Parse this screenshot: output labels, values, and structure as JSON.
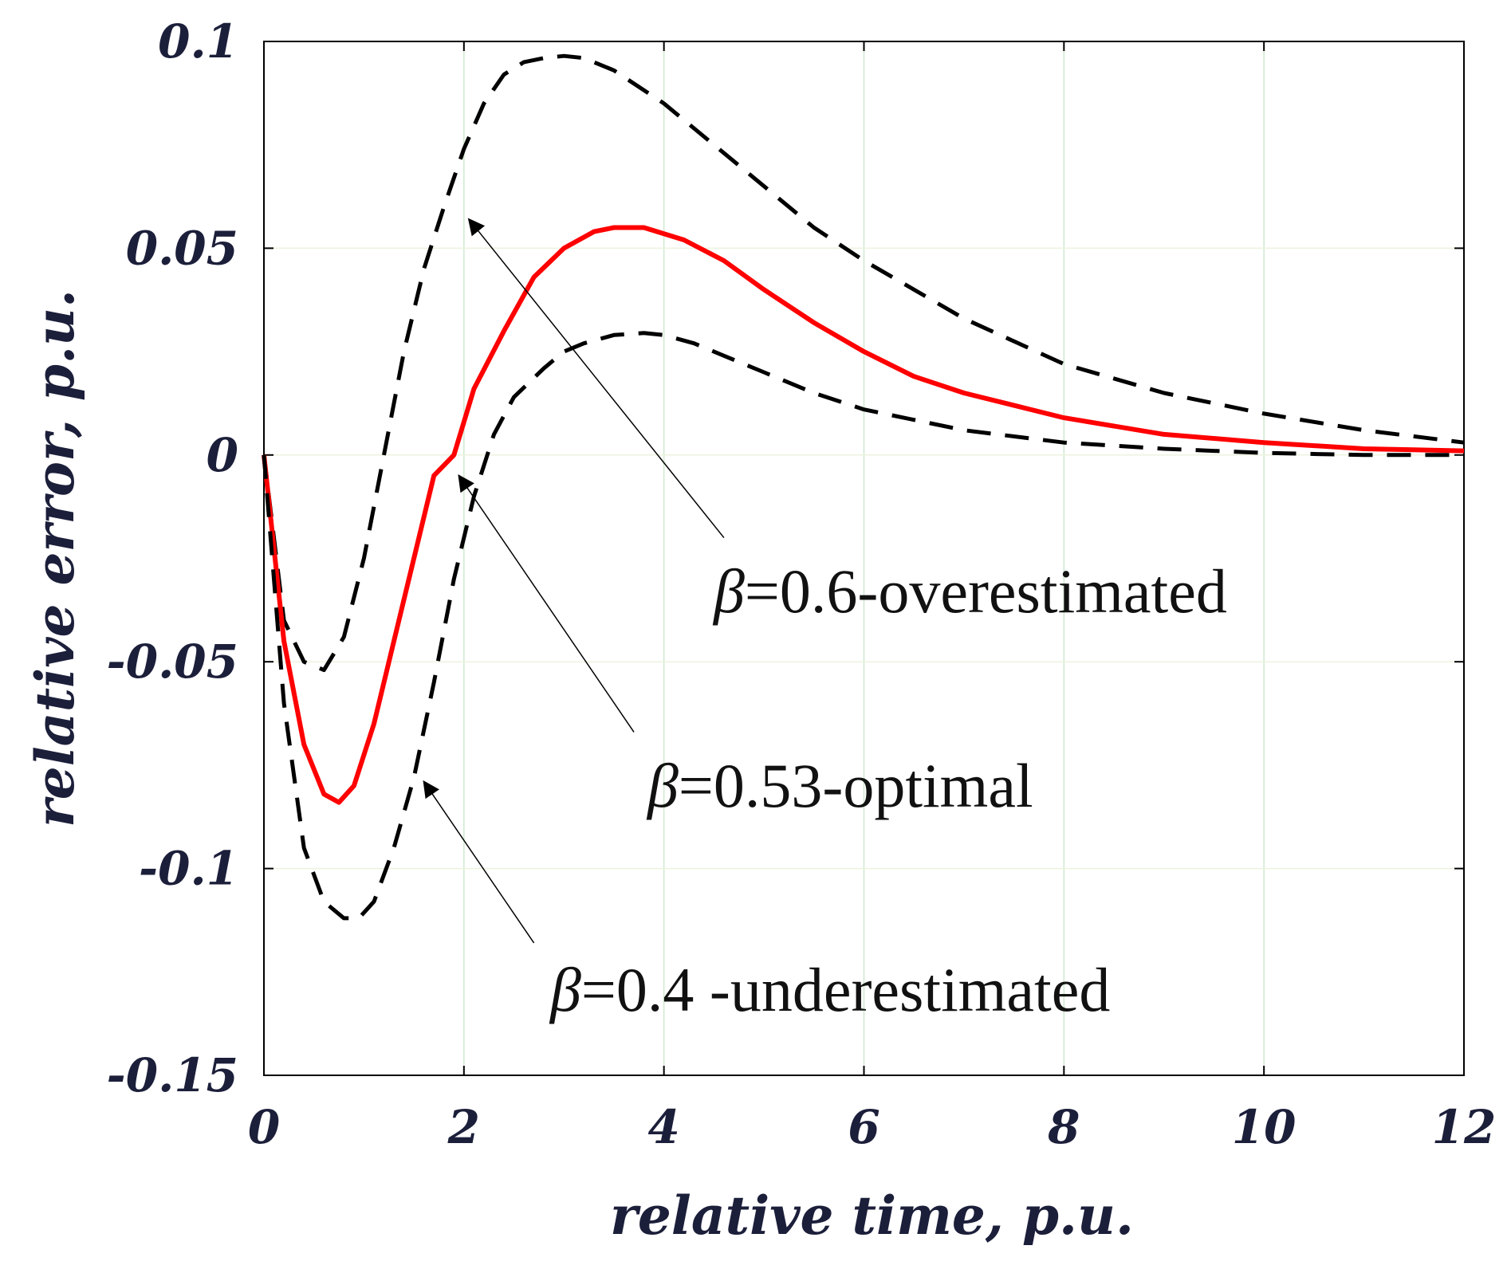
{
  "chart_data": {
    "type": "line",
    "title": "",
    "xlabel": "relative time, p.u.",
    "ylabel": "relative error, p.u.",
    "xlim": [
      0,
      12
    ],
    "ylim": [
      -0.15,
      0.1
    ],
    "xticks": [
      0,
      2,
      4,
      6,
      8,
      10,
      12
    ],
    "xtick_labels": [
      "0",
      "2",
      "4",
      "6",
      "8",
      "10",
      "12"
    ],
    "yticks": [
      0.1,
      0.05,
      0,
      -0.05,
      -0.1,
      -0.15
    ],
    "ytick_labels": [
      "0.1",
      "0.05",
      "0",
      "-0.05",
      "-0.1",
      "-0.15"
    ],
    "grid": true,
    "series": [
      {
        "name": "β=0.6-overestimated",
        "style": "dashed",
        "color": "#000000",
        "x": [
          0,
          0.2,
          0.4,
          0.6,
          0.8,
          1.0,
          1.2,
          1.4,
          1.6,
          1.8,
          2.0,
          2.2,
          2.4,
          2.6,
          2.8,
          3.0,
          3.2,
          3.5,
          4.0,
          4.5,
          5.0,
          5.5,
          6.0,
          6.5,
          7.0,
          8.0,
          9.0,
          10.0,
          11.0,
          12.0
        ],
        "y": [
          0,
          -0.04,
          -0.05,
          -0.052,
          -0.044,
          -0.025,
          0.0,
          0.025,
          0.045,
          0.06,
          0.074,
          0.085,
          0.092,
          0.095,
          0.096,
          0.0965,
          0.096,
          0.093,
          0.085,
          0.075,
          0.065,
          0.055,
          0.047,
          0.04,
          0.033,
          0.022,
          0.015,
          0.01,
          0.006,
          0.003
        ]
      },
      {
        "name": "β=0.53-optimal",
        "style": "solid",
        "color": "#ff0000",
        "x": [
          0,
          0.2,
          0.4,
          0.6,
          0.75,
          0.9,
          1.1,
          1.3,
          1.5,
          1.7,
          1.9,
          2.1,
          2.4,
          2.7,
          3.0,
          3.3,
          3.5,
          3.8,
          4.2,
          4.6,
          5.0,
          5.5,
          6.0,
          6.5,
          7.0,
          8.0,
          9.0,
          10.0,
          11.0,
          12.0
        ],
        "y": [
          0,
          -0.045,
          -0.07,
          -0.082,
          -0.084,
          -0.08,
          -0.065,
          -0.045,
          -0.025,
          -0.005,
          0.0,
          0.016,
          0.03,
          0.043,
          0.05,
          0.054,
          0.055,
          0.055,
          0.052,
          0.047,
          0.04,
          0.032,
          0.025,
          0.019,
          0.015,
          0.009,
          0.005,
          0.003,
          0.0015,
          0.001
        ]
      },
      {
        "name": "β=0.4 -underestimated",
        "style": "dashed",
        "color": "#000000",
        "x": [
          0,
          0.2,
          0.4,
          0.6,
          0.8,
          0.95,
          1.1,
          1.3,
          1.5,
          1.7,
          1.9,
          2.1,
          2.3,
          2.5,
          2.8,
          3.0,
          3.2,
          3.5,
          3.8,
          4.0,
          4.3,
          4.6,
          5.0,
          5.5,
          6.0,
          7.0,
          8.0,
          9.0,
          10.0,
          11.0,
          12.0
        ],
        "y": [
          0,
          -0.06,
          -0.095,
          -0.108,
          -0.112,
          -0.112,
          -0.108,
          -0.095,
          -0.078,
          -0.055,
          -0.03,
          -0.01,
          0.005,
          0.014,
          0.021,
          0.025,
          0.027,
          0.029,
          0.0295,
          0.029,
          0.027,
          0.024,
          0.02,
          0.015,
          0.011,
          0.006,
          0.003,
          0.0015,
          0.0005,
          0.0,
          0.0
        ]
      }
    ],
    "annotations": [
      {
        "prefix": "β",
        "text": "=0.6-overestimated",
        "arrow_to": [
          2.05,
          0.057
        ],
        "arrow_from": [
          4.6,
          -0.02
        ]
      },
      {
        "prefix": "β",
        "text": "=0.53-optimal",
        "arrow_to": [
          1.95,
          -0.005
        ],
        "arrow_from": [
          3.7,
          -0.067
        ]
      },
      {
        "prefix": "β",
        "text": "=0.4 -underestimated",
        "arrow_to": [
          1.6,
          -0.079
        ],
        "arrow_from": [
          2.7,
          -0.118
        ]
      }
    ]
  }
}
